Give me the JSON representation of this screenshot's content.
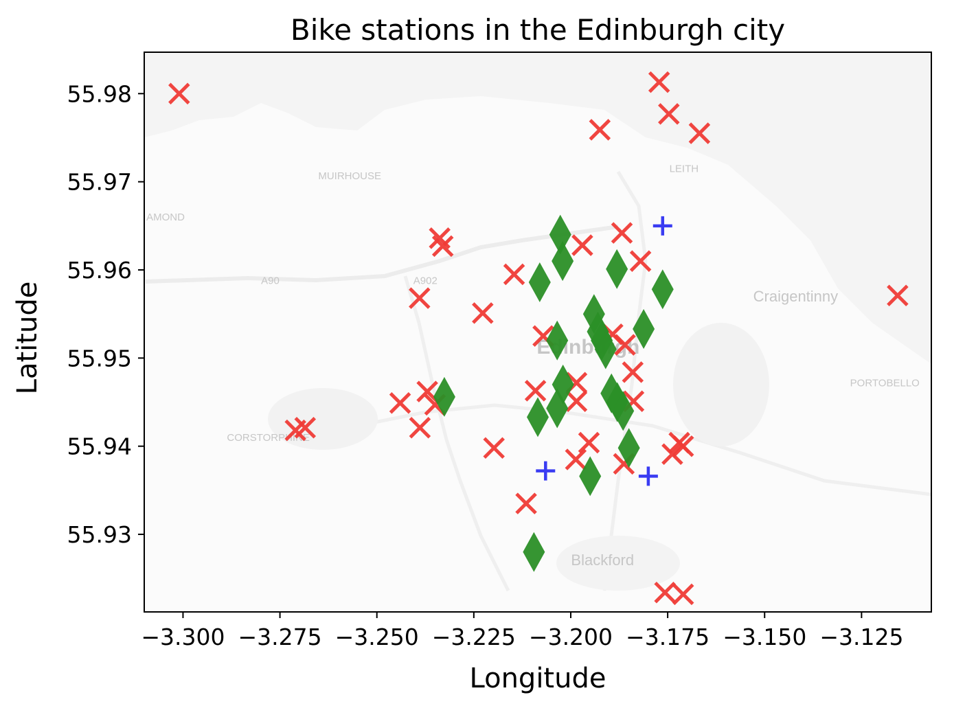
{
  "chart_data": {
    "type": "scatter",
    "title": "Bike stations in the Edinburgh city",
    "xlabel": "Longitude",
    "ylabel": "Latitude",
    "xlim": [
      -3.31,
      -3.107
    ],
    "ylim": [
      55.9212,
      55.9847
    ],
    "xticks": [
      -3.3,
      -3.275,
      -3.25,
      -3.225,
      -3.2,
      -3.175,
      -3.15,
      -3.125
    ],
    "xtick_labels": [
      "−3.300",
      "−3.275",
      "−3.250",
      "−3.225",
      "−3.200",
      "−3.175",
      "−3.150",
      "−3.125"
    ],
    "yticks": [
      55.93,
      55.94,
      55.95,
      55.96,
      55.97,
      55.98
    ],
    "ytick_labels": [
      "55.93",
      "55.94",
      "55.95",
      "55.96",
      "55.97",
      "55.98"
    ],
    "grid": false,
    "background_map": true,
    "map_labels": [
      {
        "text": "MUIRHOUSE",
        "lon": -3.257,
        "lat": 55.9703
      },
      {
        "text": "LEITH",
        "lon": -3.1708,
        "lat": 55.9711
      },
      {
        "text": "AMOND",
        "lon": -3.3045,
        "lat": 55.9656
      },
      {
        "text": "A90",
        "lon": -3.2775,
        "lat": 55.9584
      },
      {
        "text": "A902",
        "lon": -3.2375,
        "lat": 55.9584
      },
      {
        "text": "Craigentinny",
        "lon": -3.142,
        "lat": 55.9564
      },
      {
        "text": "Edinburgh",
        "lon": -3.1955,
        "lat": 55.9505
      },
      {
        "text": "PORTOBELLO",
        "lon": -3.119,
        "lat": 55.9468
      },
      {
        "text": "CORSTORPHINE",
        "lon": -3.278,
        "lat": 55.9406
      },
      {
        "text": "Blackford",
        "lon": -3.1918,
        "lat": 55.9265
      }
    ],
    "series": [
      {
        "marker": "x",
        "color": "#ef3b36",
        "points": [
          {
            "x": -3.301,
            "y": 55.98
          },
          {
            "x": -3.1772,
            "y": 55.9813
          },
          {
            "x": -3.1747,
            "y": 55.9777
          },
          {
            "x": -3.1925,
            "y": 55.9759
          },
          {
            "x": -3.1668,
            "y": 55.9755
          },
          {
            "x": -3.2338,
            "y": 55.9636
          },
          {
            "x": -3.233,
            "y": 55.9627
          },
          {
            "x": -3.197,
            "y": 55.9628
          },
          {
            "x": -3.1868,
            "y": 55.9642
          },
          {
            "x": -3.182,
            "y": 55.961
          },
          {
            "x": -3.2146,
            "y": 55.9595
          },
          {
            "x": -3.239,
            "y": 55.9568
          },
          {
            "x": -3.2227,
            "y": 55.9551
          },
          {
            "x": -3.2071,
            "y": 55.9525
          },
          {
            "x": -3.1892,
            "y": 55.9527
          },
          {
            "x": -3.186,
            "y": 55.9515
          },
          {
            "x": -3.184,
            "y": 55.9484
          },
          {
            "x": -3.1985,
            "y": 55.9472
          },
          {
            "x": -3.1985,
            "y": 55.9451
          },
          {
            "x": -3.237,
            "y": 55.9462
          },
          {
            "x": -3.235,
            "y": 55.9447
          },
          {
            "x": -3.244,
            "y": 55.9449
          },
          {
            "x": -3.2091,
            "y": 55.9463
          },
          {
            "x": -3.1838,
            "y": 55.9451
          },
          {
            "x": -3.2389,
            "y": 55.9421
          },
          {
            "x": -3.271,
            "y": 55.9418
          },
          {
            "x": -3.2685,
            "y": 55.9421
          },
          {
            "x": -3.1953,
            "y": 55.9404
          },
          {
            "x": -3.2198,
            "y": 55.9398
          },
          {
            "x": -3.172,
            "y": 55.9404
          },
          {
            "x": -3.171,
            "y": 55.94
          },
          {
            "x": -3.1738,
            "y": 55.9391
          },
          {
            "x": -3.1987,
            "y": 55.9385
          },
          {
            "x": -3.1863,
            "y": 55.938
          },
          {
            "x": -3.2115,
            "y": 55.9335
          },
          {
            "x": -3.1757,
            "y": 55.9234
          },
          {
            "x": -3.171,
            "y": 55.9232
          },
          {
            "x": -3.1157,
            "y": 55.9571
          }
        ]
      },
      {
        "marker": "diamond",
        "color": "#2b8f27",
        "points": [
          {
            "x": -3.2027,
            "y": 55.964
          },
          {
            "x": -3.2021,
            "y": 55.961
          },
          {
            "x": -3.208,
            "y": 55.9586
          },
          {
            "x": -3.1881,
            "y": 55.9601
          },
          {
            "x": -3.1763,
            "y": 55.9578
          },
          {
            "x": -3.194,
            "y": 55.955
          },
          {
            "x": -3.193,
            "y": 55.953
          },
          {
            "x": -3.191,
            "y": 55.951
          },
          {
            "x": -3.192,
            "y": 55.952
          },
          {
            "x": -3.1812,
            "y": 55.9533
          },
          {
            "x": -3.2035,
            "y": 55.952
          },
          {
            "x": -3.202,
            "y": 55.947
          },
          {
            "x": -3.2035,
            "y": 55.9443
          },
          {
            "x": -3.2085,
            "y": 55.9433
          },
          {
            "x": -3.2326,
            "y": 55.9456
          },
          {
            "x": -3.1895,
            "y": 55.946
          },
          {
            "x": -3.188,
            "y": 55.945
          },
          {
            "x": -3.1865,
            "y": 55.944
          },
          {
            "x": -3.185,
            "y": 55.9398
          },
          {
            "x": -3.195,
            "y": 55.9366
          },
          {
            "x": -3.2095,
            "y": 55.928
          }
        ]
      },
      {
        "marker": "plus",
        "color": "#3a3cf2",
        "points": [
          {
            "x": -3.1763,
            "y": 55.965
          },
          {
            "x": -3.2065,
            "y": 55.9372
          },
          {
            "x": -3.18,
            "y": 55.9366
          }
        ]
      }
    ]
  }
}
